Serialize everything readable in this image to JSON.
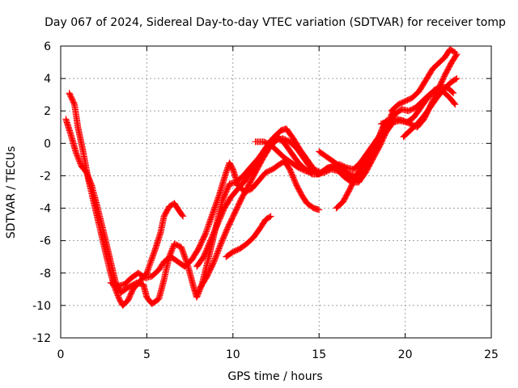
{
  "chart_data": {
    "type": "scatter",
    "title": "Day 067 of 2024, Sidereal Day-to-day VTEC variation (SDTVAR) for receiver tomp",
    "xlabel": "GPS time / hours",
    "ylabel": "SDTVAR / TECUs",
    "xlim": [
      0,
      25
    ],
    "ylim": [
      -12,
      6
    ],
    "xticks": [
      "0",
      "5",
      "10",
      "15",
      "20",
      "25"
    ],
    "yticks": [
      "-12",
      "-10",
      "-8",
      "-6",
      "-4",
      "-2",
      "0",
      "2",
      "4",
      "6"
    ],
    "grid": true,
    "marker": "+",
    "color": "#ff0000",
    "series": [
      {
        "points": [
          [
            0.5,
            3.1
          ],
          [
            0.8,
            2.4
          ],
          [
            1.0,
            1.0
          ],
          [
            1.3,
            -0.5
          ],
          [
            1.6,
            -2.2
          ],
          [
            2.0,
            -4.0
          ],
          [
            2.4,
            -5.8
          ],
          [
            2.8,
            -7.6
          ],
          [
            3.1,
            -8.8
          ],
          [
            3.4,
            -9.6
          ],
          [
            3.6,
            -10.0
          ],
          [
            3.9,
            -9.7
          ],
          [
            4.2,
            -9.0
          ],
          [
            4.6,
            -8.5
          ],
          [
            5.0,
            -8.0
          ],
          [
            5.2,
            -7.4
          ],
          [
            5.5,
            -6.5
          ],
          [
            5.8,
            -5.5
          ],
          [
            6.0,
            -4.5
          ],
          [
            6.3,
            -3.9
          ],
          [
            6.6,
            -3.7
          ],
          [
            6.9,
            -4.2
          ],
          [
            7.1,
            -4.5
          ]
        ]
      },
      {
        "points": [
          [
            0.3,
            1.5
          ],
          [
            0.6,
            0.5
          ],
          [
            0.9,
            -0.6
          ],
          [
            1.2,
            -1.4
          ],
          [
            1.5,
            -1.8
          ],
          [
            1.8,
            -2.6
          ],
          [
            2.1,
            -3.8
          ],
          [
            2.5,
            -5.5
          ],
          [
            2.9,
            -7.3
          ],
          [
            3.2,
            -8.6
          ],
          [
            3.5,
            -9.2
          ],
          [
            3.9,
            -8.9
          ],
          [
            4.4,
            -8.6
          ],
          [
            4.8,
            -8.7
          ],
          [
            5.0,
            -9.5
          ],
          [
            5.3,
            -9.9
          ],
          [
            5.7,
            -9.6
          ],
          [
            6.0,
            -8.4
          ],
          [
            6.3,
            -7.0
          ],
          [
            6.6,
            -6.2
          ],
          [
            7.0,
            -6.4
          ],
          [
            7.4,
            -7.6
          ],
          [
            7.7,
            -8.8
          ],
          [
            7.9,
            -9.5
          ],
          [
            8.2,
            -8.7
          ],
          [
            8.6,
            -7.0
          ],
          [
            9.0,
            -5.2
          ],
          [
            9.4,
            -3.5
          ],
          [
            9.8,
            -2.5
          ],
          [
            10.2,
            -2.4
          ],
          [
            10.6,
            -2.0
          ],
          [
            11.0,
            -1.5
          ],
          [
            11.5,
            -0.9
          ],
          [
            11.9,
            -0.3
          ],
          [
            12.3,
            0.3
          ],
          [
            12.8,
            0.8
          ],
          [
            13.1,
            0.9
          ],
          [
            13.5,
            0.3
          ],
          [
            13.9,
            -0.4
          ],
          [
            14.3,
            -1.0
          ],
          [
            14.7,
            -1.6
          ],
          [
            15.1,
            -1.8
          ],
          [
            15.5,
            -1.5
          ],
          [
            16.0,
            -1.4
          ],
          [
            16.6,
            -1.8
          ],
          [
            17.0,
            -2.0
          ],
          [
            17.3,
            -2.0
          ],
          [
            17.6,
            -1.5
          ],
          [
            18.0,
            -0.8
          ],
          [
            18.4,
            0.2
          ],
          [
            18.7,
            1.0
          ],
          [
            18.9,
            1.4
          ]
        ]
      },
      {
        "points": [
          [
            2.9,
            -8.6
          ],
          [
            3.3,
            -8.8
          ],
          [
            3.7,
            -8.7
          ],
          [
            4.1,
            -8.3
          ],
          [
            4.5,
            -8.0
          ],
          [
            4.9,
            -8.3
          ],
          [
            5.3,
            -8.2
          ],
          [
            5.7,
            -7.8
          ],
          [
            6.0,
            -7.3
          ],
          [
            6.4,
            -7.0
          ],
          [
            6.8,
            -7.3
          ],
          [
            7.2,
            -7.6
          ],
          [
            7.6,
            -7.2
          ],
          [
            8.0,
            -6.5
          ],
          [
            8.4,
            -5.6
          ],
          [
            8.8,
            -4.4
          ],
          [
            9.2,
            -3.2
          ],
          [
            9.6,
            -1.8
          ],
          [
            9.8,
            -1.2
          ],
          [
            10.0,
            -1.6
          ],
          [
            10.3,
            -2.6
          ],
          [
            10.7,
            -3.0
          ],
          [
            11.1,
            -2.8
          ],
          [
            11.5,
            -2.3
          ],
          [
            11.9,
            -1.8
          ],
          [
            12.3,
            -1.6
          ],
          [
            12.7,
            -1.3
          ],
          [
            13.0,
            -1.1
          ],
          [
            13.3,
            -1.6
          ],
          [
            13.7,
            -2.6
          ],
          [
            14.0,
            -3.2
          ],
          [
            14.3,
            -3.7
          ],
          [
            14.7,
            -4.0
          ],
          [
            15.0,
            -4.1
          ]
        ]
      },
      {
        "points": [
          [
            7.9,
            -7.6
          ],
          [
            8.3,
            -7.0
          ],
          [
            8.7,
            -6.0
          ],
          [
            9.1,
            -5.0
          ],
          [
            9.5,
            -4.0
          ],
          [
            9.9,
            -3.3
          ],
          [
            10.3,
            -2.8
          ],
          [
            10.7,
            -2.3
          ],
          [
            11.1,
            -1.7
          ],
          [
            11.5,
            -1.0
          ],
          [
            11.9,
            -0.3
          ],
          [
            12.3,
            0.2
          ],
          [
            12.6,
            0.4
          ],
          [
            13.0,
            0.0
          ],
          [
            13.4,
            -0.6
          ],
          [
            13.8,
            -1.2
          ],
          [
            14.2,
            -1.6
          ],
          [
            14.6,
            -1.9
          ],
          [
            15.0,
            -1.9
          ],
          [
            15.4,
            -1.6
          ],
          [
            15.8,
            -1.4
          ],
          [
            16.2,
            -1.3
          ],
          [
            16.6,
            -1.5
          ],
          [
            17.0,
            -1.6
          ],
          [
            17.4,
            -1.2
          ],
          [
            17.8,
            -0.6
          ],
          [
            18.2,
            0.0
          ],
          [
            18.6,
            0.6
          ],
          [
            19.0,
            1.2
          ],
          [
            19.4,
            1.8
          ],
          [
            19.8,
            2.1
          ],
          [
            20.2,
            2.0
          ],
          [
            20.6,
            2.2
          ],
          [
            21.0,
            2.6
          ],
          [
            21.4,
            3.0
          ],
          [
            21.8,
            3.3
          ],
          [
            22.2,
            3.2
          ],
          [
            22.6,
            2.8
          ],
          [
            22.9,
            2.4
          ]
        ]
      },
      {
        "points": [
          [
            8.1,
            -8.9
          ],
          [
            8.5,
            -8.2
          ],
          [
            8.9,
            -7.3
          ],
          [
            9.3,
            -6.2
          ],
          [
            9.7,
            -5.2
          ],
          [
            10.1,
            -4.3
          ],
          [
            10.5,
            -3.4
          ],
          [
            10.9,
            -2.6
          ],
          [
            11.3,
            -1.8
          ],
          [
            11.7,
            -1.0
          ],
          [
            12.1,
            -0.3
          ],
          [
            12.5,
            0.2
          ],
          [
            12.9,
            0.3
          ],
          [
            13.3,
            0.1
          ],
          [
            13.7,
            -0.3
          ],
          [
            14.1,
            -0.9
          ],
          [
            14.5,
            -1.5
          ],
          [
            14.9,
            -1.9
          ],
          [
            15.3,
            -1.8
          ],
          [
            15.7,
            -1.6
          ],
          [
            16.1,
            -1.7
          ],
          [
            16.5,
            -2.1
          ],
          [
            16.9,
            -2.4
          ],
          [
            17.3,
            -2.4
          ],
          [
            17.7,
            -1.8
          ],
          [
            18.1,
            -1.0
          ],
          [
            18.5,
            -0.2
          ],
          [
            18.9,
            0.7
          ],
          [
            19.3,
            1.3
          ],
          [
            19.7,
            1.4
          ],
          [
            20.1,
            1.3
          ],
          [
            20.5,
            1.6
          ],
          [
            20.9,
            2.2
          ],
          [
            21.3,
            2.8
          ],
          [
            21.7,
            3.3
          ],
          [
            22.1,
            3.5
          ],
          [
            22.5,
            3.4
          ],
          [
            22.8,
            3.1
          ]
        ]
      },
      {
        "points": [
          [
            9.6,
            -7.0
          ],
          [
            10.0,
            -6.7
          ],
          [
            10.4,
            -6.5
          ],
          [
            10.8,
            -6.2
          ],
          [
            11.2,
            -5.8
          ],
          [
            11.6,
            -5.2
          ],
          [
            11.9,
            -4.7
          ],
          [
            12.2,
            -4.5
          ]
        ]
      },
      {
        "points": [
          [
            11.3,
            0.1
          ],
          [
            11.8,
            0.1
          ],
          [
            12.2,
            -0.1
          ],
          [
            12.6,
            -0.5
          ],
          [
            13.0,
            -0.9
          ],
          [
            13.4,
            -1.2
          ],
          [
            13.8,
            -1.5
          ],
          [
            14.2,
            -1.7
          ],
          [
            14.6,
            -1.8
          ]
        ]
      },
      {
        "points": [
          [
            15.0,
            -0.5
          ],
          [
            15.4,
            -0.8
          ],
          [
            15.8,
            -1.1
          ],
          [
            16.2,
            -1.4
          ],
          [
            16.6,
            -1.8
          ],
          [
            17.0,
            -2.2
          ],
          [
            17.3,
            -2.3
          ],
          [
            17.6,
            -1.7
          ],
          [
            17.9,
            -1.0
          ],
          [
            18.2,
            -0.4
          ],
          [
            18.5,
            0.2
          ],
          [
            18.8,
            0.9
          ],
          [
            19.1,
            1.5
          ],
          [
            19.3,
            2.0
          ]
        ]
      },
      {
        "points": [
          [
            16.0,
            -4.0
          ],
          [
            16.4,
            -3.6
          ],
          [
            16.8,
            -2.8
          ],
          [
            17.2,
            -1.9
          ],
          [
            17.5,
            -1.3
          ],
          [
            17.8,
            -0.8
          ],
          [
            18.1,
            -0.4
          ],
          [
            18.4,
            0.0
          ],
          [
            18.7,
            0.5
          ]
        ]
      },
      {
        "points": [
          [
            18.6,
            1.2
          ],
          [
            19.1,
            1.4
          ],
          [
            19.5,
            1.5
          ],
          [
            19.9,
            1.4
          ],
          [
            20.3,
            1.2
          ],
          [
            20.7,
            1.0
          ],
          [
            21.1,
            1.5
          ],
          [
            21.5,
            2.4
          ],
          [
            21.9,
            3.3
          ],
          [
            22.3,
            4.2
          ],
          [
            22.7,
            5.0
          ],
          [
            23.0,
            5.5
          ]
        ]
      },
      {
        "points": [
          [
            19.2,
            2.0
          ],
          [
            19.6,
            2.4
          ],
          [
            20.0,
            2.6
          ],
          [
            20.4,
            2.8
          ],
          [
            20.8,
            3.2
          ],
          [
            21.2,
            3.9
          ],
          [
            21.6,
            4.6
          ],
          [
            22.0,
            5.0
          ],
          [
            22.3,
            5.3
          ],
          [
            22.6,
            5.8
          ],
          [
            22.9,
            5.6
          ]
        ]
      },
      {
        "points": [
          [
            19.9,
            0.4
          ],
          [
            20.3,
            0.8
          ],
          [
            20.7,
            1.2
          ],
          [
            21.1,
            1.7
          ],
          [
            21.5,
            2.3
          ],
          [
            21.9,
            2.9
          ],
          [
            22.3,
            3.4
          ],
          [
            22.7,
            3.8
          ],
          [
            23.0,
            4.0
          ]
        ]
      }
    ]
  }
}
